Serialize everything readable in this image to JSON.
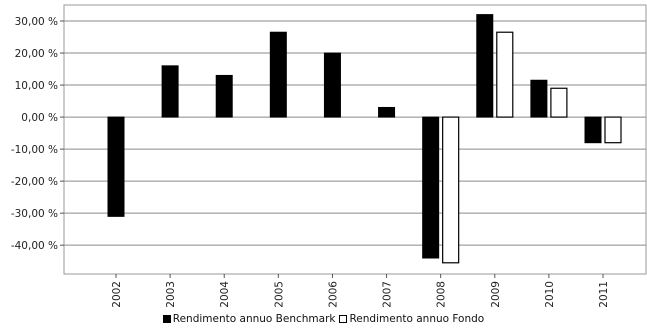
{
  "chart_data": {
    "type": "bar",
    "categories": [
      "2002",
      "2003",
      "2004",
      "2005",
      "2006",
      "2007",
      "2008",
      "2009",
      "2010",
      "2011"
    ],
    "series": [
      {
        "name": "Rendimento annuo Benchmark",
        "color": "#000000",
        "values": [
          -31,
          16,
          13,
          26.5,
          20,
          3,
          -44,
          32,
          11.5,
          -8
        ]
      },
      {
        "name": "Rendimento annuo Fondo",
        "color": "#ffffff",
        "values": [
          null,
          null,
          null,
          null,
          null,
          null,
          -45.5,
          26.5,
          9,
          -8
        ]
      }
    ],
    "y_ticks": [
      "30,00 %",
      "20,00 %",
      "10,00 %",
      "0,00 %",
      "-10,00 %",
      "-20,00 %",
      "-30,00 %",
      "-40,00 %"
    ],
    "y_tick_values": [
      30,
      20,
      10,
      0,
      -10,
      -20,
      -30,
      -40
    ],
    "ylim": [
      -49,
      35
    ],
    "grid": true,
    "legend_position": "bottom"
  }
}
